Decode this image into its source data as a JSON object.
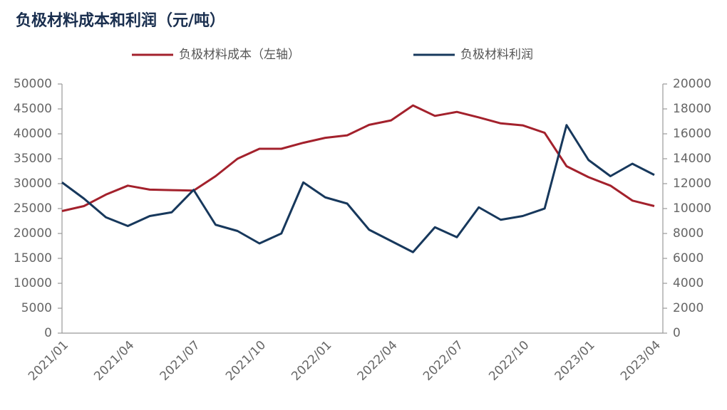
{
  "chart_data": {
    "type": "line",
    "title": "负极材料成本和利润（元/吨）",
    "categories": [
      "2021/01",
      null,
      null,
      "2021/04",
      null,
      null,
      "2021/07",
      null,
      null,
      "2021/10",
      null,
      null,
      "2022/01",
      null,
      null,
      "2022/04",
      null,
      null,
      "2022/07",
      null,
      null,
      "2022/10",
      null,
      null,
      "2023/01",
      null,
      null,
      "2023/04"
    ],
    "series": [
      {
        "name": "负极材料成本（左轴）",
        "color": "#a3212c",
        "values": [
          24500,
          25500,
          27800,
          29600,
          28800,
          28700,
          28600,
          31500,
          35000,
          37000,
          37000,
          38200,
          39200,
          39700,
          41800,
          42700,
          45700,
          43600,
          44400,
          43300,
          42100,
          41700,
          40200,
          33500,
          31300,
          29600,
          26600,
          25500
        ]
      },
      {
        "name": "负极材料利润",
        "color": "#17385c",
        "axis": "y2",
        "values": [
          12100,
          10800,
          9300,
          8600,
          9400,
          9700,
          11500,
          8700,
          8200,
          7200,
          8000,
          12100,
          10900,
          10400,
          8300,
          7400,
          6500,
          8500,
          7700,
          10100,
          9100,
          9400,
          10000,
          16700,
          13900,
          12600,
          13600,
          12700
        ]
      }
    ],
    "ylim": [
      0,
      50000
    ],
    "yticks": [
      0,
      5000,
      10000,
      15000,
      20000,
      25000,
      30000,
      35000,
      40000,
      45000,
      50000
    ],
    "y2lim": [
      0,
      20000
    ],
    "y2ticks": [
      0,
      2000,
      4000,
      6000,
      8000,
      10000,
      12000,
      14000,
      16000,
      18000,
      20000
    ]
  }
}
